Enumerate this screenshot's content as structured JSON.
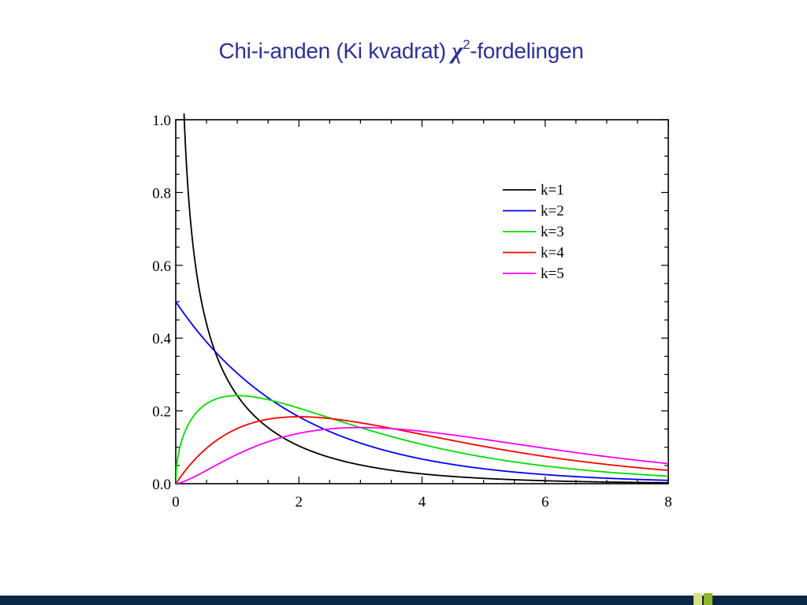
{
  "slide": {
    "title_prefix": "Chi-i-anden (Ki kvadrat) ",
    "title_symbol": "χ",
    "title_sup": "2",
    "title_suffix": "-fordelingen"
  },
  "chart_data": {
    "type": "line",
    "function": "chi-squared probability density f(x; k)",
    "xlim": [
      0,
      8
    ],
    "ylim": [
      0,
      1.0
    ],
    "x_ticks": [
      0,
      2,
      4,
      6,
      8
    ],
    "x_tick_labels": [
      "0",
      "2",
      "4",
      "6",
      "8"
    ],
    "y_ticks": [
      0.0,
      0.2,
      0.4,
      0.6,
      0.8,
      1.0
    ],
    "y_tick_labels": [
      "0.0",
      "0.2",
      "0.4",
      "0.6",
      "0.8",
      "1.0"
    ],
    "xlabel": "",
    "ylabel": "",
    "grid": false,
    "legend_position": "top-right",
    "series": [
      {
        "name": "k=1",
        "k": 1,
        "color": "#000000",
        "x": [
          0.5,
          1,
          2,
          3,
          4,
          6,
          8
        ],
        "y": [
          0.4394,
          0.242,
          0.1038,
          0.0514,
          0.027,
          0.0081,
          0.0025
        ]
      },
      {
        "name": "k=2",
        "k": 2,
        "color": "#0000ff",
        "x": [
          0,
          1,
          2,
          3,
          4,
          6,
          8
        ],
        "y": [
          0.5,
          0.3033,
          0.1839,
          0.1116,
          0.0677,
          0.0249,
          0.0092
        ]
      },
      {
        "name": "k=3",
        "k": 3,
        "color": "#00dd00",
        "x": [
          0,
          1,
          2,
          3,
          4,
          6,
          8
        ],
        "y": [
          0.0,
          0.242,
          0.2076,
          0.1542,
          0.108,
          0.0487,
          0.0209
        ]
      },
      {
        "name": "k=4",
        "k": 4,
        "color": "#ff0000",
        "x": [
          0,
          1,
          2,
          3,
          4,
          6,
          8
        ],
        "y": [
          0.0,
          0.1516,
          0.1839,
          0.1673,
          0.1353,
          0.0747,
          0.0366
        ]
      },
      {
        "name": "k=5",
        "k": 5,
        "color": "#ff00ff",
        "x": [
          0,
          1,
          2,
          3,
          4,
          6,
          8
        ],
        "y": [
          0.0,
          0.0807,
          0.1384,
          0.1542,
          0.144,
          0.0973,
          0.0551
        ]
      }
    ]
  }
}
